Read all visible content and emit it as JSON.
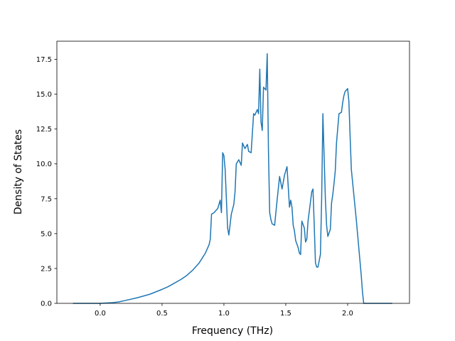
{
  "chart_data": {
    "type": "line",
    "title": "",
    "xlabel": "Frequency (THz)",
    "ylabel": "Density of States",
    "xlim": [
      -0.35,
      2.5
    ],
    "ylim": [
      0,
      18.8
    ],
    "xticks": [
      0.0,
      0.5,
      1.0,
      1.5,
      2.0
    ],
    "xtick_labels": [
      "0.0",
      "0.5",
      "1.0",
      "1.5",
      "2.0"
    ],
    "yticks": [
      0.0,
      2.5,
      5.0,
      7.5,
      10.0,
      12.5,
      15.0,
      17.5
    ],
    "ytick_labels": [
      "0.0",
      "2.5",
      "5.0",
      "7.5",
      "10.0",
      "12.5",
      "15.0",
      "17.5"
    ],
    "grid": false,
    "colors": {
      "line": "#1f77b4"
    },
    "series": [
      {
        "x": [
          -0.22,
          -0.1,
          0.0,
          0.1,
          0.15,
          0.2,
          0.3,
          0.4,
          0.5,
          0.55,
          0.6,
          0.65,
          0.7,
          0.75,
          0.8,
          0.85,
          0.88,
          0.89,
          0.9,
          0.92,
          0.95,
          0.97,
          0.98,
          0.99,
          1.0,
          1.01,
          1.03,
          1.04,
          1.06,
          1.08,
          1.09,
          1.1,
          1.12,
          1.14,
          1.15,
          1.17,
          1.19,
          1.2,
          1.22,
          1.24,
          1.25,
          1.27,
          1.28,
          1.29,
          1.3,
          1.31,
          1.32,
          1.34,
          1.35,
          1.36,
          1.37,
          1.38,
          1.39,
          1.41,
          1.43,
          1.45,
          1.47,
          1.49,
          1.51,
          1.53,
          1.54,
          1.55,
          1.56,
          1.57,
          1.58,
          1.6,
          1.61,
          1.62,
          1.63,
          1.65,
          1.66,
          1.67,
          1.68,
          1.7,
          1.71,
          1.72,
          1.73,
          1.74,
          1.75,
          1.76,
          1.78,
          1.79,
          1.8,
          1.81,
          1.82,
          1.83,
          1.84,
          1.86,
          1.87,
          1.88,
          1.89,
          1.9,
          1.91,
          1.93,
          1.95,
          1.96,
          1.97,
          1.98,
          1.99,
          2.0,
          2.01,
          2.02,
          2.03,
          2.05,
          2.07,
          2.09,
          2.11,
          2.12,
          2.13,
          2.14,
          2.15,
          2.2,
          2.36
        ],
        "y": [
          0.0,
          0.0,
          0.0,
          0.05,
          0.1,
          0.2,
          0.4,
          0.65,
          1.0,
          1.2,
          1.45,
          1.7,
          2.0,
          2.4,
          2.9,
          3.6,
          4.2,
          4.6,
          6.4,
          6.5,
          6.8,
          7.4,
          6.5,
          10.8,
          10.6,
          9.6,
          5.4,
          4.9,
          6.4,
          7.1,
          8.0,
          10.0,
          10.3,
          9.9,
          11.5,
          11.1,
          11.4,
          10.9,
          10.8,
          13.6,
          13.5,
          13.9,
          13.6,
          16.8,
          13.0,
          12.4,
          15.5,
          15.3,
          17.9,
          11.0,
          6.5,
          6.0,
          5.7,
          5.6,
          7.4,
          9.1,
          8.2,
          9.2,
          9.8,
          6.9,
          7.4,
          6.9,
          5.6,
          5.2,
          4.5,
          4.0,
          3.6,
          3.5,
          5.9,
          5.4,
          4.4,
          4.6,
          5.9,
          7.3,
          8.0,
          8.2,
          5.6,
          2.9,
          2.6,
          2.6,
          3.5,
          7.5,
          13.6,
          10.5,
          7.5,
          5.6,
          4.8,
          5.3,
          7.2,
          7.8,
          8.6,
          9.5,
          11.5,
          13.6,
          13.7,
          14.4,
          14.9,
          15.2,
          15.3,
          15.4,
          14.5,
          12.0,
          9.6,
          7.8,
          6.0,
          4.0,
          2.0,
          0.8,
          0.0,
          0.0,
          0.0,
          0.0,
          0.0
        ]
      }
    ]
  }
}
